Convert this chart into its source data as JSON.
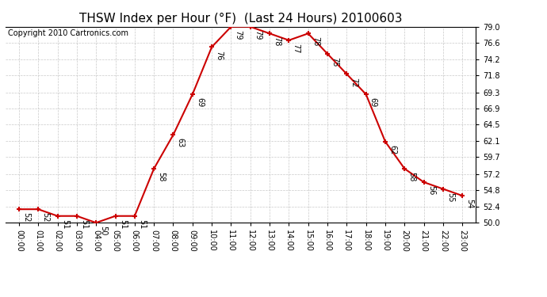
{
  "title": "THSW Index per Hour (°F)  (Last 24 Hours) 20100603",
  "copyright": "Copyright 2010 Cartronics.com",
  "hours": [
    0,
    1,
    2,
    3,
    4,
    5,
    6,
    7,
    8,
    9,
    10,
    11,
    12,
    13,
    14,
    15,
    16,
    17,
    18,
    19,
    20,
    21,
    22,
    23
  ],
  "values": [
    52,
    52,
    51,
    51,
    50,
    51,
    51,
    58,
    63,
    69,
    76,
    79,
    79,
    78,
    77,
    78,
    75,
    72,
    69,
    62,
    58,
    56,
    55,
    54
  ],
  "xlabels": [
    "00:00",
    "01:00",
    "02:00",
    "03:00",
    "04:00",
    "05:00",
    "06:00",
    "07:00",
    "08:00",
    "09:00",
    "10:00",
    "11:00",
    "12:00",
    "13:00",
    "14:00",
    "15:00",
    "16:00",
    "17:00",
    "18:00",
    "19:00",
    "20:00",
    "21:00",
    "22:00",
    "23:00"
  ],
  "ylim": [
    50.0,
    79.0
  ],
  "yticks": [
    50.0,
    52.4,
    54.8,
    57.2,
    59.7,
    62.1,
    64.5,
    66.9,
    69.3,
    71.8,
    74.2,
    76.6,
    79.0
  ],
  "line_color": "#cc0000",
  "marker_color": "#cc0000",
  "bg_color": "#ffffff",
  "plot_bg": "#ffffff",
  "grid_color": "#bbbbbb",
  "title_fontsize": 11,
  "label_fontsize": 7,
  "annotation_fontsize": 7,
  "copyright_fontsize": 7
}
